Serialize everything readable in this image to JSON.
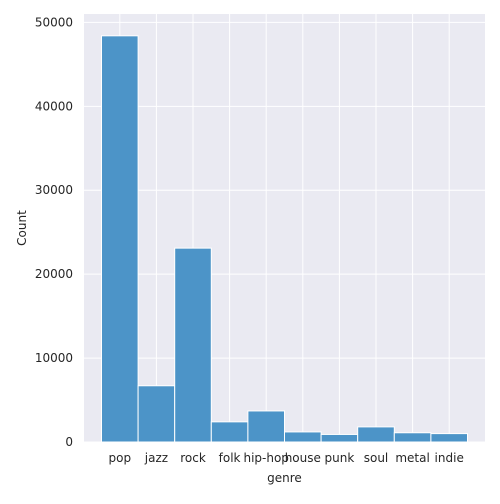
{
  "chart_data": {
    "type": "bar",
    "categories": [
      "pop",
      "jazz",
      "rock",
      "folk",
      "hip-hop",
      "house",
      "punk",
      "soul",
      "metal",
      "indie"
    ],
    "values": [
      48400,
      6700,
      23100,
      2400,
      3700,
      1200,
      900,
      1800,
      1100,
      1000
    ],
    "xlabel": "genre",
    "ylabel": "Count",
    "ylim": [
      0,
      51000
    ],
    "yticks": [
      0,
      10000,
      20000,
      30000,
      40000,
      50000
    ],
    "grid": true,
    "colors": {
      "bar": "#4c94c8",
      "bar_edge": "#ffffff",
      "background": "#eaeaf2",
      "grid": "#ffffff"
    }
  }
}
